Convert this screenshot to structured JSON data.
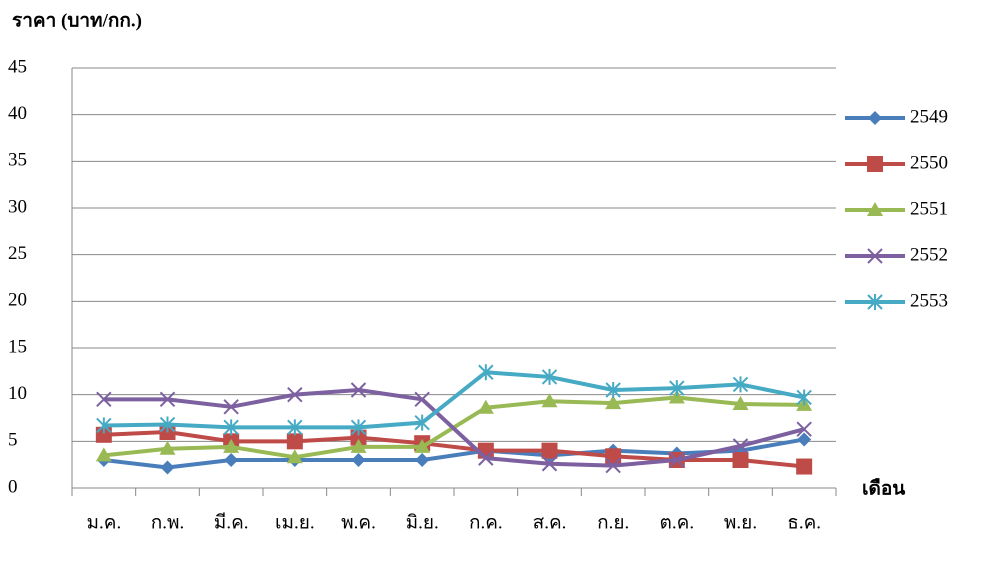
{
  "chart_data": {
    "type": "line",
    "title": "ราคา (บาท/กก.)",
    "x_label": "เดือน",
    "categories": [
      "ม.ค.",
      "ก.พ.",
      "มี.ค.",
      "เม.ย.",
      "พ.ค.",
      "มิ.ย.",
      "ก.ค.",
      "ส.ค.",
      "ก.ย.",
      "ต.ค.",
      "พ.ย.",
      "ธ.ค."
    ],
    "series": [
      {
        "name": "2549",
        "color": "#4a7ebb",
        "marker": "diamond",
        "values": [
          3,
          2.2,
          3,
          3,
          3,
          3,
          4,
          3.5,
          4,
          3.7,
          4,
          5.2
        ]
      },
      {
        "name": "2550",
        "color": "#be4b48",
        "marker": "square",
        "values": [
          5.7,
          6,
          5,
          5,
          5.4,
          4.8,
          4,
          4,
          3.4,
          3,
          3,
          2.3
        ]
      },
      {
        "name": "2551",
        "color": "#98b954",
        "marker": "triangle",
        "values": [
          3.5,
          4.2,
          4.4,
          3.3,
          4.4,
          4.4,
          8.6,
          9.3,
          9.1,
          9.7,
          9,
          8.9
        ]
      },
      {
        "name": "2552",
        "color": "#7d60a0",
        "marker": "x",
        "values": [
          9.5,
          9.5,
          8.7,
          10,
          10.5,
          9.5,
          3.2,
          2.6,
          2.4,
          3,
          4.5,
          6.3
        ]
      },
      {
        "name": "2553",
        "color": "#46aac5",
        "marker": "star",
        "values": [
          6.7,
          6.8,
          6.5,
          6.5,
          6.5,
          7,
          12.4,
          11.9,
          10.5,
          10.7,
          11.1,
          9.7
        ]
      }
    ],
    "ylim": [
      0,
      45
    ],
    "yticks": [
      0,
      5,
      10,
      15,
      20,
      25,
      30,
      35,
      40,
      45
    ],
    "grid": true,
    "legend": "right"
  }
}
